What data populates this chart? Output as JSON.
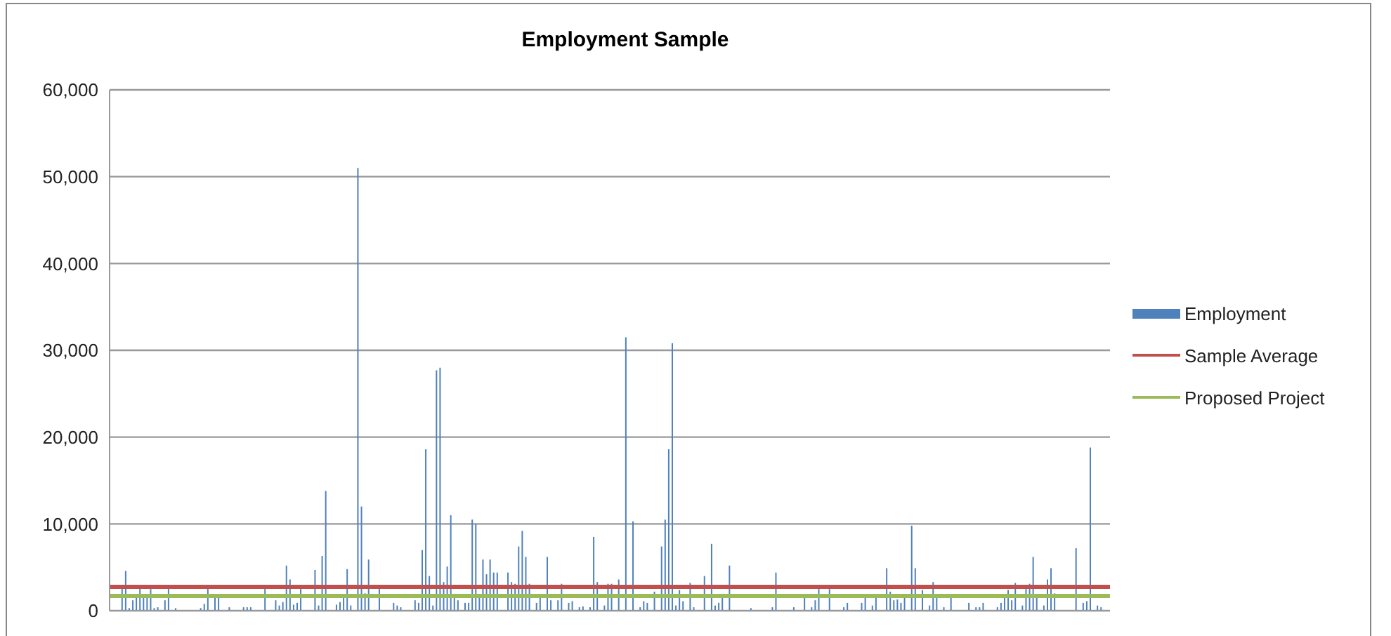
{
  "chart_data": {
    "type": "bar",
    "title": "Employment Sample",
    "categories": [
      null,
      null,
      null,
      null,
      null,
      null,
      null,
      null,
      null,
      null,
      null,
      null,
      null,
      null,
      null,
      null,
      null,
      null,
      null,
      null,
      null,
      null,
      null,
      null,
      null,
      null,
      null,
      null,
      null,
      null,
      null,
      null,
      null,
      null,
      null,
      null,
      null,
      null,
      null,
      null,
      null,
      null,
      null,
      null,
      null,
      null,
      null,
      null,
      null,
      null,
      null,
      null,
      null,
      null,
      null,
      null,
      null,
      null,
      null,
      null,
      null,
      null,
      null,
      null,
      null,
      null,
      null,
      null,
      null,
      null,
      null,
      null,
      null,
      null,
      null,
      null,
      null,
      null,
      null,
      null,
      null,
      null,
      null,
      null,
      null,
      null,
      null,
      null,
      null,
      null,
      null,
      null,
      null,
      null,
      null,
      null,
      null,
      null,
      null,
      null,
      null,
      null,
      null,
      null,
      null,
      null,
      null,
      null,
      null,
      null,
      null,
      null,
      null,
      null,
      null,
      null,
      null,
      null,
      null,
      null,
      null,
      null,
      null,
      null,
      null,
      null,
      null,
      null,
      null,
      null,
      null,
      null,
      null,
      null,
      null,
      null,
      null,
      null,
      null,
      null,
      null,
      null,
      null,
      null,
      null,
      null,
      null,
      null,
      null,
      null,
      null,
      null,
      null,
      null,
      null,
      null,
      null,
      null,
      null,
      null,
      null,
      null,
      null,
      null,
      null,
      null,
      null,
      null,
      null,
      null,
      null,
      null,
      null,
      null,
      null,
      null,
      null,
      null,
      null,
      null,
      null,
      null,
      null,
      null,
      null,
      null,
      null,
      null,
      null,
      null,
      null,
      null,
      null,
      null,
      null,
      null,
      null,
      null,
      null,
      null,
      null,
      null,
      null,
      null,
      null,
      null,
      null,
      null,
      null,
      null,
      null,
      null,
      null,
      null,
      null,
      null,
      null,
      null,
      null,
      null,
      null,
      null,
      null,
      null,
      null,
      null,
      null,
      null,
      null,
      null,
      null,
      null,
      null,
      null,
      null,
      null,
      null,
      null,
      null,
      null,
      null,
      null,
      null,
      null,
      null,
      null,
      null,
      null,
      null,
      null,
      null,
      null,
      null,
      null,
      null,
      null,
      null,
      null,
      null,
      null,
      null,
      null,
      null,
      null,
      null,
      null,
      null,
      null,
      null,
      null,
      null,
      null,
      null,
      null,
      null,
      null,
      null,
      null,
      null,
      null
    ],
    "series": [
      {
        "name": "Employment",
        "color": "#4f81bd",
        "values": [
          0,
          0,
          0,
          2500,
          4600,
          300,
          1200,
          1500,
          2500,
          1500,
          1600,
          2500,
          300,
          400,
          0,
          1200,
          2500,
          0,
          300,
          0,
          0,
          null,
          0,
          0,
          0,
          300,
          800,
          2500,
          0,
          1500,
          1500,
          0,
          0,
          400,
          0,
          0,
          0,
          400,
          400,
          400,
          0,
          null,
          0,
          2500,
          0,
          null,
          1200,
          600,
          1000,
          5200,
          3600,
          700,
          900,
          2500,
          0,
          0,
          0,
          4700,
          600,
          6300,
          13800,
          0,
          0,
          700,
          1000,
          1500,
          4800,
          600,
          0,
          51000,
          12000,
          2000,
          5900,
          0,
          0,
          2500,
          0,
          0,
          0,
          900,
          600,
          400,
          0,
          0,
          0,
          1200,
          900,
          7000,
          18600,
          4000,
          600,
          27700,
          28000,
          3300,
          5100,
          11000,
          1700,
          1200,
          0,
          900,
          900,
          10500,
          10000,
          1500,
          5900,
          4200,
          5900,
          4400,
          4400,
          0,
          0,
          4400,
          3300,
          3100,
          7400,
          9200,
          6200,
          3100,
          0,
          900,
          1500,
          0,
          6200,
          1200,
          0,
          1200,
          3100,
          0,
          900,
          1100,
          0,
          400,
          500,
          0,
          400,
          8500,
          3300,
          0,
          600,
          3100,
          3100,
          0,
          3600,
          0,
          31500,
          0,
          10300,
          0,
          400,
          1100,
          900,
          0,
          2200,
          0,
          7400,
          10500,
          18600,
          30800,
          600,
          2400,
          1100,
          0,
          3200,
          400,
          0,
          0,
          4000,
          0,
          7700,
          600,
          900,
          1500,
          0,
          5200,
          0,
          0,
          0,
          0,
          0,
          300,
          0,
          0,
          0,
          0,
          0,
          400,
          4400,
          0,
          0,
          0,
          0,
          400,
          0,
          0,
          1500,
          0,
          400,
          1200,
          2500,
          0,
          0,
          2500,
          0,
          0,
          0,
          400,
          900,
          0,
          0,
          0,
          900,
          1500,
          0,
          600,
          1500,
          0,
          0,
          4900,
          2200,
          1200,
          1300,
          900,
          1500,
          0,
          9800,
          4900,
          0,
          2400,
          0,
          600,
          3300,
          1500,
          0,
          400,
          0,
          1500,
          0,
          0,
          0,
          0,
          900,
          0,
          400,
          400,
          900,
          0,
          0,
          0,
          400,
          900,
          1500,
          2400,
          1200,
          3200,
          0,
          600,
          2500,
          3100,
          6200,
          1500,
          0,
          600,
          3600,
          4900,
          2000,
          0,
          0,
          0,
          0,
          0,
          7200,
          0,
          900,
          1100,
          18800,
          0,
          600,
          400,
          0,
          0
        ]
      }
    ],
    "ref_lines": [
      {
        "axis": "y",
        "value": 2750,
        "label": "Sample Average",
        "color": "#c0504d"
      },
      {
        "axis": "y",
        "value": 1700,
        "label": "Proposed Project",
        "color": "#9bbb59"
      }
    ],
    "ylim": [
      0,
      60000
    ],
    "yticks": [
      0,
      {
        "value": 10000,
        "label": "10,000"
      },
      {
        "value": 20000,
        "label": "20,000"
      },
      {
        "value": 30000,
        "label": "30,000"
      },
      {
        "value": 40000,
        "label": "40,000"
      },
      {
        "value": 50000,
        "label": "50,000"
      },
      {
        "value": 60000,
        "label": "60,000"
      }
    ],
    "tick_labels": "y",
    "grid": "y",
    "legend": "right"
  }
}
